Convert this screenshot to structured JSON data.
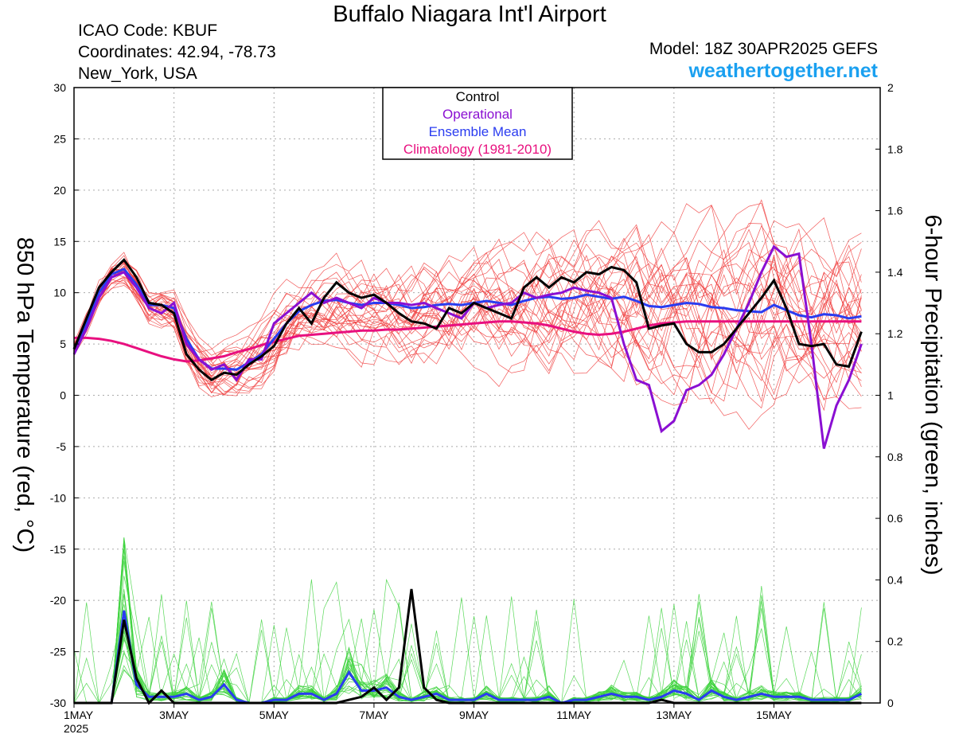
{
  "header": {
    "title": "Buffalo Niagara Int'l Airport",
    "icao": "ICAO Code: KBUF",
    "coords": "Coordinates: 42.94, -78.73",
    "location": "New_York, USA",
    "model": "Model: 18Z 30APR2025 GEFS",
    "site": "weathertogether.net"
  },
  "chart_data": {
    "type": "line",
    "ylabel_left": "850 hPa Temperature (red, °C)",
    "ylabel_right": "6-hour Precipitation (green, inches)",
    "x_unit": "day of May 2025 (6-hour steps starting 1 May 00Z)",
    "xlim": [
      1,
      17.125
    ],
    "ylim_left": [
      -30,
      30
    ],
    "ylim_right": [
      0,
      2
    ],
    "yticks_left": [
      "30",
      "25",
      "20",
      "15",
      "10",
      "5",
      "0",
      "-5",
      "-10",
      "-15",
      "-20",
      "-25",
      "-30"
    ],
    "yticks_right": [
      "2",
      "1.8",
      "1.6",
      "1.4",
      "1.2",
      "1",
      "0.8",
      "0.6",
      "0.4",
      "0.2",
      "0"
    ],
    "xticks": [
      {
        "x": 1,
        "label": "1MAY"
      },
      {
        "x": 3,
        "label": "3MAY"
      },
      {
        "x": 5,
        "label": "5MAY"
      },
      {
        "x": 7,
        "label": "7MAY"
      },
      {
        "x": 9,
        "label": "9MAY"
      },
      {
        "x": 11,
        "label": "11MAY"
      },
      {
        "x": 13,
        "label": "13MAY"
      },
      {
        "x": 15,
        "label": "15MAY"
      }
    ],
    "year_label": "2025",
    "grid": true,
    "legend_position": "top-center",
    "legend": [
      {
        "label": "Control",
        "color": "#000000"
      },
      {
        "label": "Operational",
        "color": "#8a0fd2"
      },
      {
        "label": "Ensemble Mean",
        "color": "#2a3cf0"
      },
      {
        "label": "Climatology (1981-2010)",
        "color": "#e8107f"
      }
    ],
    "colors": {
      "members_temp": "#f03c3c",
      "members_precip": "#3cd23c",
      "control": "#000000",
      "operational": "#8a0fd2",
      "mean": "#2a3cf0",
      "climatology": "#e8107f"
    },
    "temperature": {
      "x_start": 1,
      "x_step": 0.25,
      "control": [
        4.5,
        7.5,
        10.5,
        12.0,
        13.2,
        11.5,
        9.0,
        8.8,
        8.0,
        4.0,
        2.5,
        1.5,
        2.2,
        2.0,
        3.0,
        3.8,
        4.8,
        7.0,
        8.5,
        7.0,
        9.5,
        11.0,
        10.0,
        9.5,
        9.8,
        9.0,
        8.0,
        7.2,
        7.0,
        6.5,
        8.5,
        8.0,
        9.0,
        8.5,
        8.0,
        7.5,
        10.5,
        11.5,
        10.5,
        11.5,
        11.0,
        12.0,
        11.8,
        12.5,
        12.2,
        11.0,
        6.5,
        6.8,
        7.0,
        5.0,
        4.2,
        4.2,
        5.0,
        6.5,
        8.0,
        9.5,
        11.2,
        8.5,
        5.0,
        4.8,
        5.0,
        3.0,
        2.8,
        6.2
      ],
      "operational": [
        4.0,
        6.5,
        9.5,
        11.5,
        12.0,
        10.5,
        8.5,
        8.0,
        9.0,
        5.0,
        3.5,
        2.5,
        3.0,
        1.5,
        3.5,
        3.5,
        7.0,
        8.0,
        9.0,
        10.0,
        9.0,
        9.5,
        9.0,
        8.5,
        9.5,
        9.0,
        9.0,
        8.8,
        9.0,
        8.5,
        8.0,
        7.5,
        9.0,
        8.5,
        8.8,
        9.0,
        10.0,
        9.5,
        9.8,
        10.0,
        10.5,
        10.2,
        10.0,
        9.5,
        5.0,
        1.5,
        1.0,
        -3.5,
        -2.5,
        0.5,
        1.0,
        2.0,
        4.0,
        6.5,
        9.0,
        12.0,
        14.5,
        13.5,
        13.8,
        5.0,
        -5.2,
        -1.0,
        1.5,
        5.0
      ],
      "mean": [
        4.5,
        7.0,
        10.0,
        11.8,
        12.3,
        10.8,
        8.8,
        8.8,
        8.5,
        5.5,
        3.5,
        2.6,
        2.6,
        2.5,
        3.2,
        4.0,
        5.5,
        7.0,
        8.2,
        8.8,
        9.2,
        9.3,
        9.0,
        8.8,
        9.0,
        9.0,
        8.8,
        8.5,
        8.6,
        8.8,
        8.9,
        8.8,
        9.0,
        9.2,
        9.0,
        8.8,
        9.2,
        9.5,
        9.6,
        9.4,
        9.5,
        9.8,
        9.6,
        9.4,
        9.6,
        9.2,
        8.7,
        8.6,
        8.8,
        9.0,
        8.9,
        8.6,
        8.5,
        8.3,
        8.2,
        8.1,
        8.8,
        8.3,
        7.8,
        7.6,
        7.9,
        7.8,
        7.5,
        7.7
      ],
      "climatology": [
        5.6,
        5.6,
        5.5,
        5.3,
        5.0,
        4.6,
        4.2,
        3.8,
        3.5,
        3.3,
        3.4,
        3.6,
        3.8,
        4.2,
        4.5,
        4.9,
        5.2,
        5.5,
        5.8,
        5.9,
        6.0,
        6.1,
        6.2,
        6.3,
        6.3,
        6.4,
        6.4,
        6.5,
        6.6,
        6.7,
        6.8,
        6.9,
        7.0,
        7.1,
        7.2,
        7.2,
        7.1,
        7.0,
        6.8,
        6.5,
        6.2,
        6.0,
        5.9,
        6.0,
        6.2,
        6.5,
        6.8,
        7.0,
        7.1,
        7.2,
        7.2,
        7.2,
        7.2,
        7.2,
        7.2,
        7.2,
        7.2,
        7.2,
        7.2,
        7.2,
        7.2,
        7.2,
        7.2,
        7.2
      ]
    },
    "precipitation": {
      "x_start": 1,
      "x_step": 0.25,
      "control": [
        0,
        0,
        0,
        0,
        0.27,
        0.08,
        0,
        0.04,
        0,
        0,
        0,
        0,
        0,
        0,
        0,
        0,
        0,
        0,
        0,
        0,
        0,
        0,
        0.01,
        0.02,
        0.05,
        0.01,
        0.05,
        0.37,
        0.05,
        0.01,
        0,
        0,
        0,
        0,
        0,
        0,
        0,
        0,
        0,
        0,
        0,
        0,
        0,
        0,
        0,
        0,
        0,
        0.01,
        0,
        0,
        0,
        0,
        0,
        0,
        0,
        0,
        0,
        0,
        0,
        0,
        0,
        0,
        0,
        0
      ],
      "mean": [
        0,
        0,
        0,
        0,
        0.3,
        0.06,
        0.02,
        0.02,
        0.02,
        0.03,
        0.01,
        0.02,
        0.06,
        0.01,
        0,
        0,
        0.01,
        0.01,
        0.03,
        0.03,
        0.01,
        0.03,
        0.1,
        0.04,
        0.04,
        0.05,
        0.02,
        0.01,
        0.02,
        0.03,
        0.01,
        0.01,
        0.01,
        0.03,
        0.01,
        0.01,
        0.01,
        0.01,
        0.02,
        0,
        0.01,
        0.01,
        0.02,
        0.03,
        0.02,
        0.02,
        0.01,
        0.02,
        0.04,
        0.03,
        0.01,
        0.04,
        0.02,
        0.01,
        0.02,
        0.03,
        0.02,
        0.02,
        0.02,
        0.01,
        0.01,
        0.01,
        0.01,
        0.03
      ]
    }
  }
}
